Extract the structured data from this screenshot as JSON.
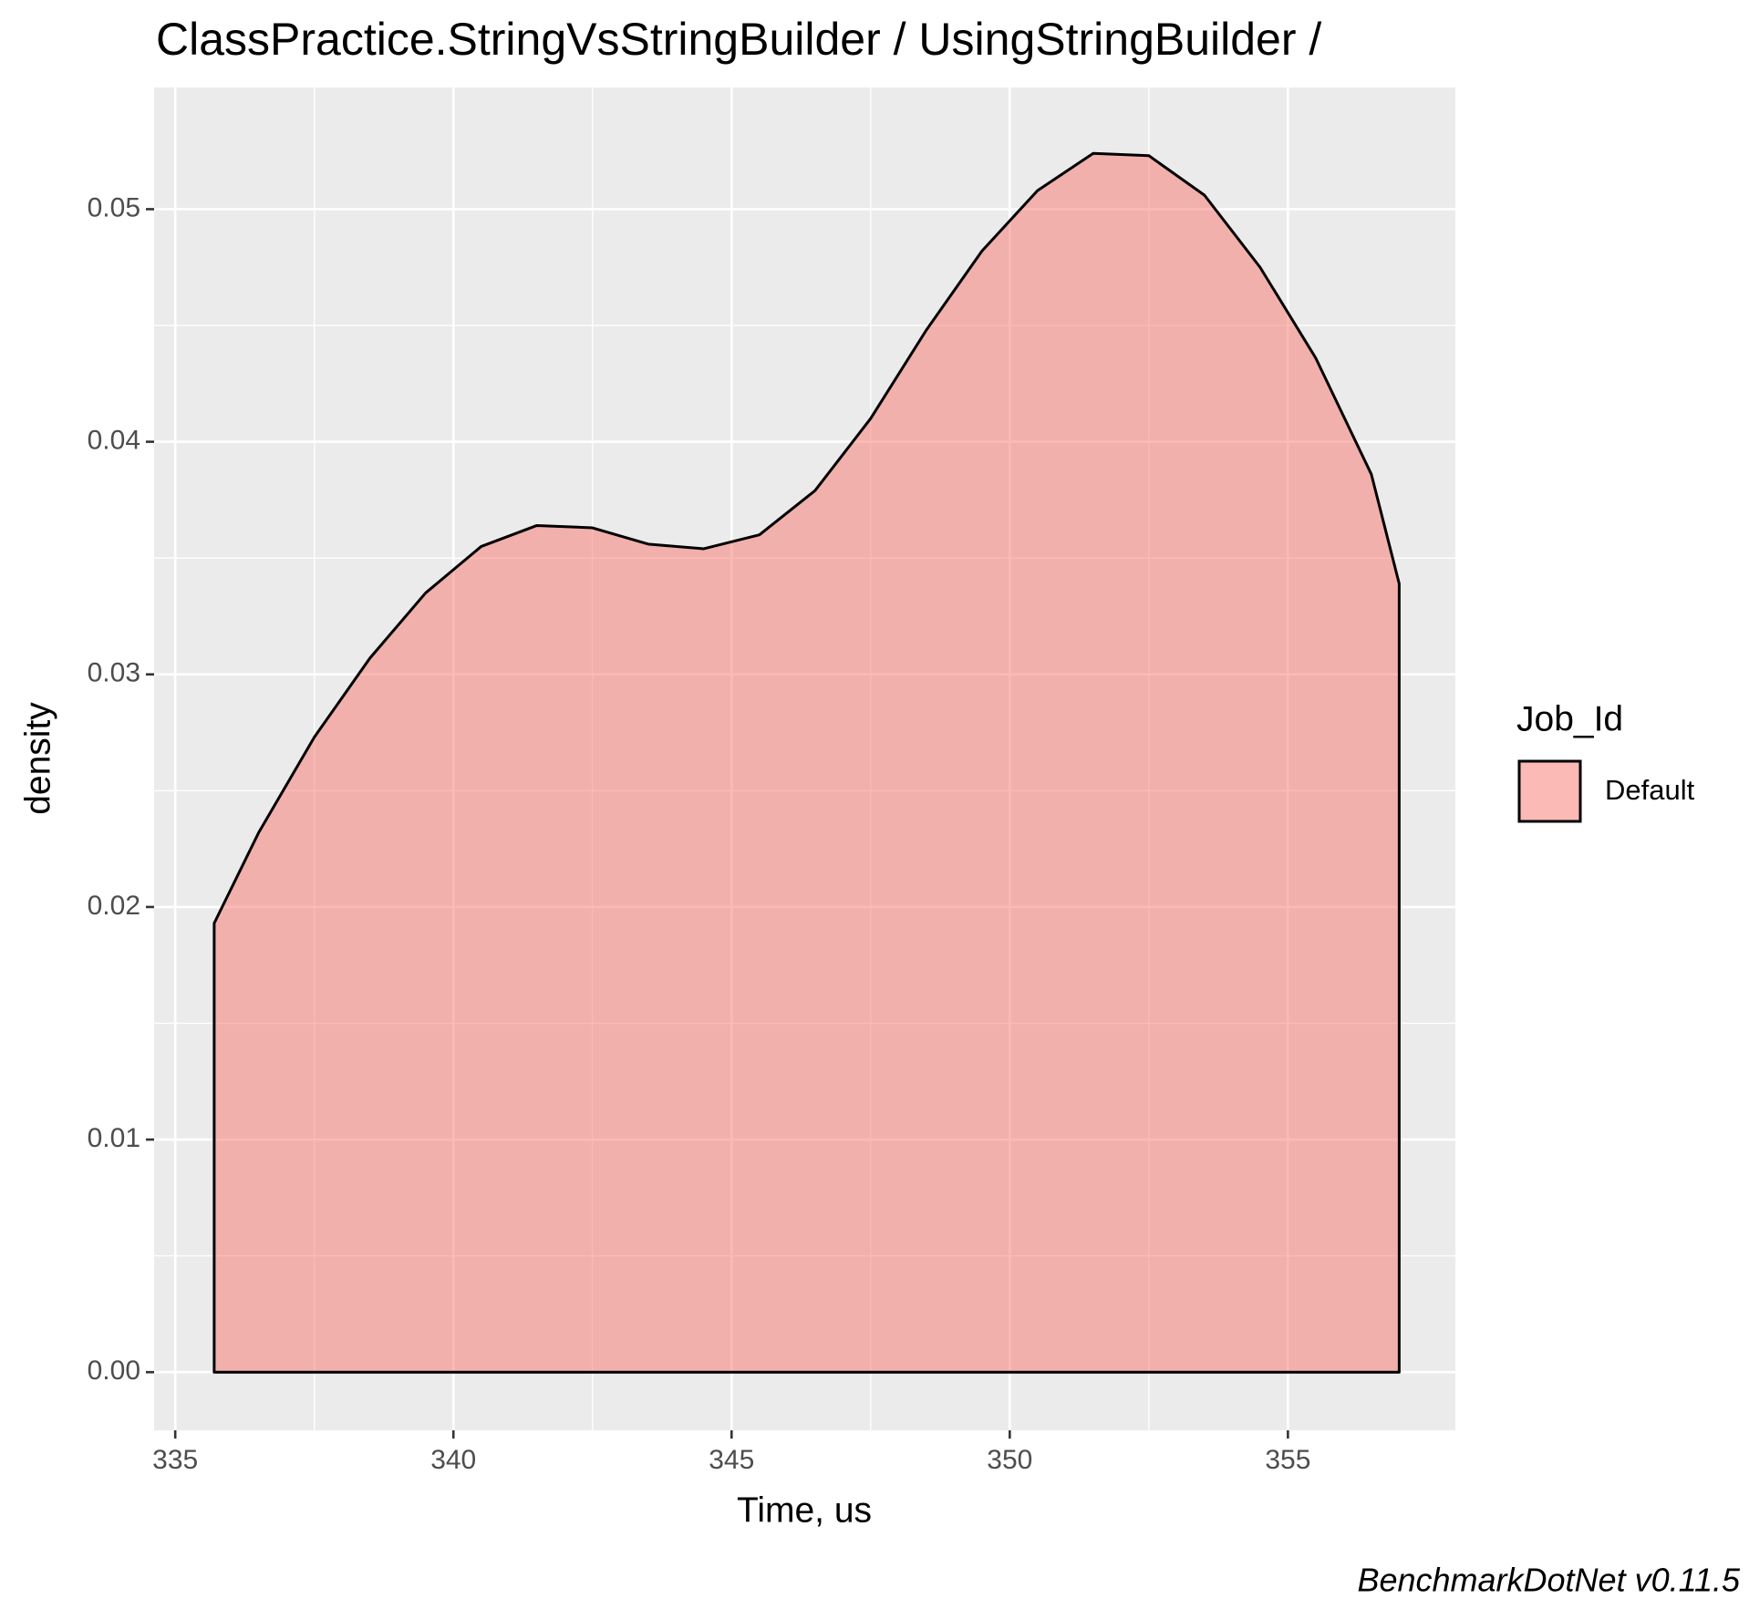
{
  "chart_data": {
    "type": "area",
    "title": "ClassPractice.StringVsStringBuilder / UsingStringBuilder /",
    "x_label": "Time, us",
    "y_label": "density",
    "caption": "BenchmarkDotNet v0.11.5",
    "legend_title": "Job_Id",
    "x": [
      335.7,
      336.5,
      337.5,
      338.5,
      339.5,
      340.5,
      341.5,
      342.5,
      343.5,
      344.5,
      345.5,
      346.5,
      347.5,
      348.5,
      349.5,
      350.5,
      351.5,
      352.5,
      353.5,
      354.5,
      355.5,
      356.5,
      357.0
    ],
    "series": [
      {
        "name": "Default",
        "color": "#F8766D",
        "values": [
          0.0193,
          0.0232,
          0.0273,
          0.0307,
          0.0335,
          0.0355,
          0.0364,
          0.0363,
          0.0356,
          0.0354,
          0.036,
          0.0379,
          0.041,
          0.0448,
          0.0482,
          0.0508,
          0.0524,
          0.0523,
          0.0506,
          0.0475,
          0.0436,
          0.0386,
          0.0339
        ]
      }
    ],
    "xlim": [
      334.62,
      358.01
    ],
    "xticks": [
      335,
      340,
      345,
      350,
      355
    ],
    "ylim": [
      -0.0025,
      0.05523
    ],
    "yticks": [
      {
        "value": 0,
        "label": "0.00"
      },
      0.01,
      0.02,
      0.03,
      0.04,
      0.05
    ],
    "grid": true,
    "legend": "right"
  }
}
